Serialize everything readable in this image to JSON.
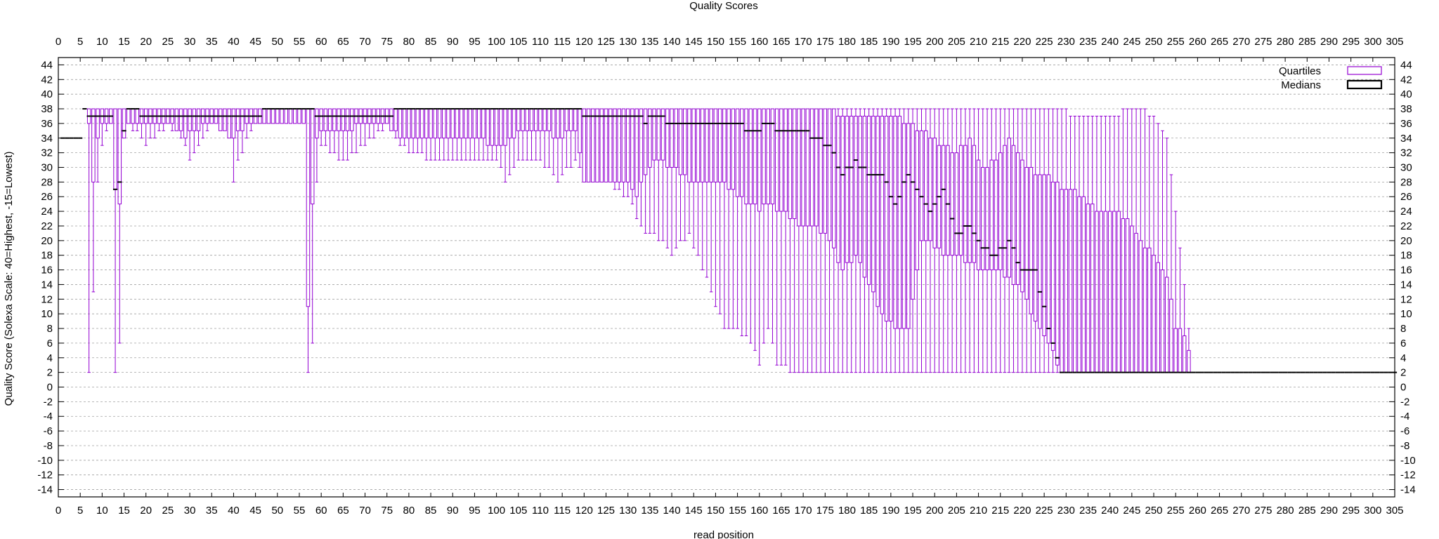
{
  "chart_data": {
    "type": "boxplot",
    "title": "Quality Scores",
    "xlabel": "read position",
    "ylabel": "Quality Score (Solexa Scale: 40=Highest, -15=Lowest)",
    "xlim": [
      0,
      305
    ],
    "ylim": [
      -15,
      45
    ],
    "x_ticks": [
      0,
      5,
      10,
      15,
      20,
      25,
      30,
      35,
      40,
      45,
      50,
      55,
      60,
      65,
      70,
      75,
      80,
      85,
      90,
      95,
      100,
      105,
      110,
      115,
      120,
      125,
      130,
      135,
      140,
      145,
      150,
      155,
      160,
      165,
      170,
      175,
      180,
      185,
      190,
      195,
      200,
      205,
      210,
      215,
      220,
      225,
      230,
      235,
      240,
      245,
      250,
      255,
      260,
      265,
      270,
      275,
      280,
      285,
      290,
      295,
      300,
      305
    ],
    "y_ticks": [
      -14,
      -12,
      -10,
      -8,
      -6,
      -4,
      -2,
      0,
      2,
      4,
      6,
      8,
      10,
      12,
      14,
      16,
      18,
      20,
      22,
      24,
      26,
      28,
      30,
      32,
      34,
      36,
      38,
      40,
      42,
      44
    ],
    "grid": true,
    "legend_position": "top-right",
    "legend": [
      {
        "label": "Quartiles",
        "color": "#9400d3"
      },
      {
        "label": "Medians",
        "color": "#000000"
      }
    ],
    "colors": {
      "quartiles": "#9400d3",
      "medians": "#000000",
      "grid": "#a0a0a0"
    },
    "keypoints": [
      [
        1,
        34,
        34,
        34,
        34,
        34
      ],
      [
        5,
        34,
        34,
        34,
        34,
        34
      ],
      [
        6,
        38,
        38,
        38,
        38,
        38
      ],
      [
        7,
        2,
        36,
        37,
        38,
        38
      ],
      [
        8,
        13,
        28,
        37,
        38,
        38
      ],
      [
        9,
        28,
        34,
        37,
        38,
        38
      ],
      [
        10,
        33,
        36,
        37,
        38,
        38
      ],
      [
        12,
        36,
        36,
        37,
        38,
        38
      ],
      [
        13,
        2,
        27,
        27,
        38,
        38
      ],
      [
        14,
        6,
        25,
        28,
        38,
        38
      ],
      [
        15,
        34,
        34,
        35,
        38,
        38
      ],
      [
        16,
        36,
        36,
        38,
        38,
        38
      ],
      [
        20,
        33,
        36,
        37,
        38,
        38
      ],
      [
        25,
        36,
        36,
        37,
        38,
        38
      ],
      [
        29,
        33,
        34,
        37,
        38,
        38
      ],
      [
        30,
        31,
        35,
        37,
        38,
        38
      ],
      [
        35,
        36,
        36,
        37,
        38,
        38
      ],
      [
        39,
        34,
        34,
        37,
        38,
        38
      ],
      [
        40,
        28,
        34,
        37,
        38,
        38
      ],
      [
        41,
        31,
        35,
        37,
        38,
        38
      ],
      [
        45,
        36,
        36,
        37,
        38,
        38
      ],
      [
        48,
        36,
        36,
        38,
        38,
        38
      ],
      [
        56,
        36,
        36,
        38,
        38,
        38
      ],
      [
        57,
        2,
        11,
        38,
        38,
        38
      ],
      [
        58,
        6,
        25,
        38,
        38,
        38
      ],
      [
        59,
        28,
        34,
        37,
        38,
        38
      ],
      [
        60,
        33,
        35,
        37,
        38,
        38
      ],
      [
        65,
        31,
        35,
        37,
        38,
        38
      ],
      [
        70,
        33,
        36,
        37,
        38,
        38
      ],
      [
        75,
        36,
        36,
        37,
        38,
        38
      ],
      [
        78,
        33,
        34,
        38,
        38,
        38
      ],
      [
        85,
        31,
        34,
        38,
        38,
        38
      ],
      [
        90,
        31,
        34,
        38,
        38,
        38
      ],
      [
        95,
        31,
        34,
        38,
        38,
        38
      ],
      [
        100,
        31,
        33,
        38,
        38,
        38
      ],
      [
        102,
        28,
        33,
        38,
        38,
        38
      ],
      [
        105,
        31,
        35,
        38,
        38,
        38
      ],
      [
        110,
        31,
        35,
        38,
        38,
        38
      ],
      [
        114,
        28,
        34,
        38,
        38,
        38
      ],
      [
        118,
        31,
        35,
        38,
        38,
        38
      ],
      [
        120,
        28,
        28,
        37,
        38,
        38
      ],
      [
        125,
        28,
        28,
        37,
        38,
        38
      ],
      [
        130,
        26,
        28,
        37,
        38,
        38
      ],
      [
        132,
        23,
        26,
        37,
        38,
        38
      ],
      [
        134,
        21,
        29,
        36,
        38,
        38
      ],
      [
        136,
        21,
        31,
        37,
        38,
        38
      ],
      [
        140,
        18,
        30,
        36,
        38,
        38
      ],
      [
        144,
        21,
        28,
        36,
        38,
        38
      ],
      [
        147,
        16,
        28,
        36,
        38,
        38
      ],
      [
        149,
        13,
        28,
        36,
        38,
        38
      ],
      [
        152,
        8,
        28,
        36,
        38,
        38
      ],
      [
        155,
        8,
        26,
        36,
        38,
        38
      ],
      [
        158,
        6,
        25,
        35,
        38,
        38
      ],
      [
        160,
        3,
        24,
        35,
        38,
        38
      ],
      [
        162,
        8,
        25,
        36,
        38,
        38
      ],
      [
        164,
        3,
        24,
        35,
        38,
        38
      ],
      [
        166,
        3,
        24,
        35,
        38,
        38
      ],
      [
        167,
        2,
        23,
        35,
        38,
        38
      ],
      [
        170,
        2,
        22,
        35,
        38,
        38
      ],
      [
        173,
        2,
        22,
        34,
        38,
        38
      ],
      [
        176,
        2,
        20,
        33,
        38,
        38
      ],
      [
        179,
        2,
        16,
        29,
        37,
        38
      ],
      [
        182,
        2,
        18,
        31,
        37,
        38
      ],
      [
        185,
        2,
        14,
        29,
        37,
        38
      ],
      [
        188,
        2,
        10,
        29,
        37,
        38
      ],
      [
        191,
        2,
        8,
        25,
        37,
        38
      ],
      [
        194,
        2,
        8,
        29,
        36,
        38
      ],
      [
        197,
        2,
        20,
        26,
        35,
        38
      ],
      [
        199,
        2,
        20,
        24,
        34,
        38
      ],
      [
        202,
        2,
        18,
        27,
        33,
        38
      ],
      [
        205,
        2,
        18,
        21,
        32,
        38
      ],
      [
        208,
        2,
        17,
        22,
        34,
        38
      ],
      [
        211,
        2,
        16,
        19,
        30,
        38
      ],
      [
        214,
        2,
        16,
        18,
        31,
        38
      ],
      [
        217,
        2,
        15,
        20,
        34,
        38
      ],
      [
        220,
        2,
        13,
        16,
        31,
        38
      ],
      [
        223,
        2,
        9,
        16,
        29,
        38
      ],
      [
        226,
        2,
        6,
        8,
        29,
        38
      ],
      [
        229,
        2,
        2,
        2,
        27,
        38
      ],
      [
        232,
        2,
        2,
        2,
        27,
        37
      ],
      [
        235,
        2,
        2,
        2,
        25,
        37
      ],
      [
        238,
        2,
        2,
        2,
        24,
        37
      ],
      [
        241,
        2,
        2,
        2,
        24,
        37
      ],
      [
        244,
        2,
        2,
        2,
        23,
        38
      ],
      [
        247,
        2,
        2,
        2,
        20,
        38
      ],
      [
        250,
        2,
        2,
        2,
        18,
        37
      ],
      [
        253,
        2,
        2,
        2,
        15,
        34
      ],
      [
        255,
        2,
        2,
        2,
        8,
        24
      ],
      [
        257,
        2,
        2,
        2,
        7,
        14
      ],
      [
        259,
        2,
        2,
        2,
        2,
        2
      ],
      [
        305,
        2,
        2,
        2,
        2,
        2
      ]
    ]
  }
}
